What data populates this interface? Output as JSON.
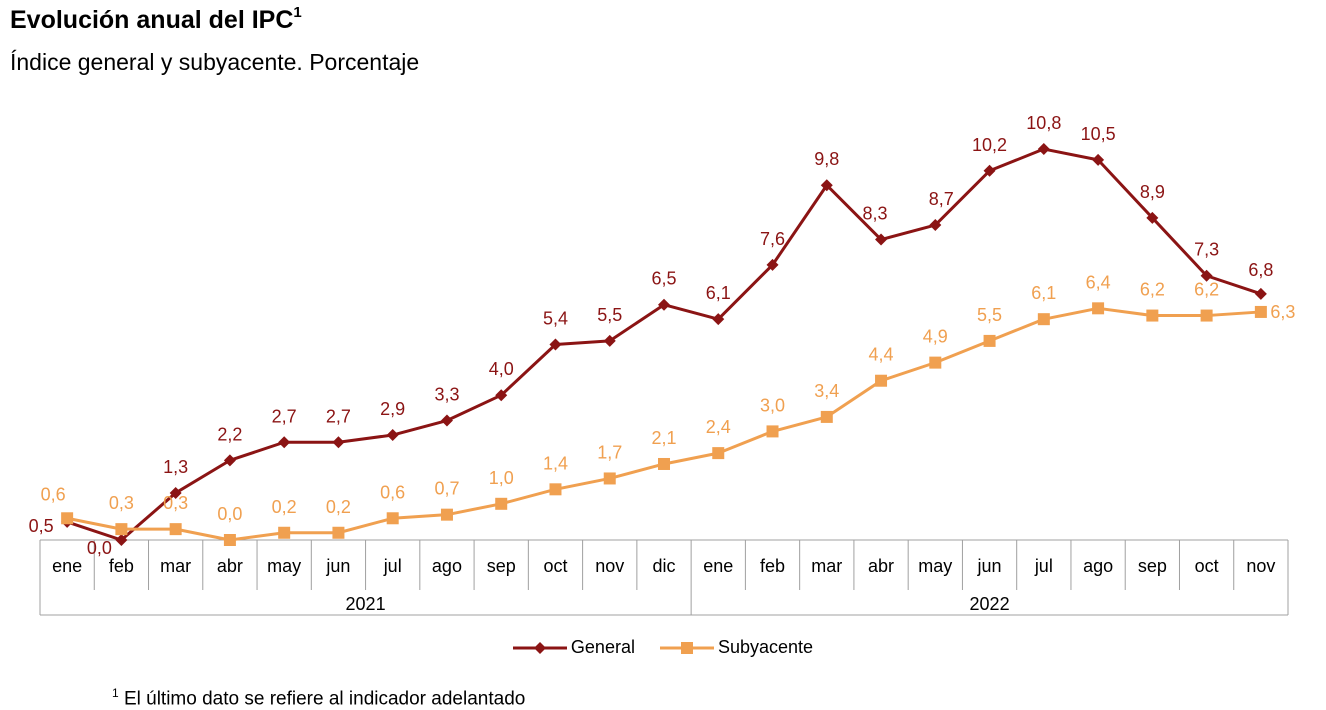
{
  "title": "Evolución anual del IPC",
  "title_superscript": "1",
  "subtitle": "Índice general y subyacente. Porcentaje",
  "footnote": {
    "marker": "1",
    "text": "El último dato se refiere al indicador adelantado"
  },
  "colors": {
    "general": "#8b1414",
    "subyacente": "#f0a050",
    "axis": "#a0a0a0"
  },
  "chart_data": {
    "type": "line",
    "categories": [
      "ene",
      "feb",
      "mar",
      "abr",
      "may",
      "jun",
      "jul",
      "ago",
      "sep",
      "oct",
      "nov",
      "dic",
      "ene",
      "feb",
      "mar",
      "abr",
      "may",
      "jun",
      "jul",
      "ago",
      "sep",
      "oct",
      "nov"
    ],
    "groups": [
      {
        "label": "2021",
        "start": 0,
        "end": 11
      },
      {
        "label": "2022",
        "start": 12,
        "end": 22
      }
    ],
    "series": [
      {
        "name": "General",
        "marker": "diamond",
        "values": [
          0.5,
          0.0,
          1.3,
          2.2,
          2.7,
          2.7,
          2.9,
          3.3,
          4.0,
          5.4,
          5.5,
          6.5,
          6.1,
          7.6,
          9.8,
          8.3,
          8.7,
          10.2,
          10.8,
          10.5,
          8.9,
          7.3,
          6.8
        ],
        "labels": [
          "0,5",
          "0,0",
          "1,3",
          "2,2",
          "2,7",
          "2,7",
          "2,9",
          "3,3",
          "4,0",
          "5,4",
          "5,5",
          "6,5",
          "6,1",
          "7,6",
          "9,8",
          "8,3",
          "8,7",
          "10,2",
          "10,8",
          "10,5",
          "8,9",
          "7,3",
          "6,8"
        ]
      },
      {
        "name": "Subyacente",
        "marker": "square",
        "values": [
          0.6,
          0.3,
          0.3,
          0.0,
          0.2,
          0.2,
          0.6,
          0.7,
          1.0,
          1.4,
          1.7,
          2.1,
          2.4,
          3.0,
          3.4,
          4.4,
          4.9,
          5.5,
          6.1,
          6.4,
          6.2,
          6.2,
          6.3
        ],
        "labels": [
          "0,6",
          "0,3",
          "0,3",
          "0,0",
          "0,2",
          "0,2",
          "0,6",
          "0,7",
          "1,0",
          "1,4",
          "1,7",
          "2,1",
          "2,4",
          "3,0",
          "3,4",
          "4,4",
          "4,9",
          "5,5",
          "6,1",
          "6,4",
          "6,2",
          "6,2",
          "6,3"
        ]
      }
    ],
    "ylim": [
      0,
      10.8
    ],
    "grid": false,
    "legend_position": "bottom"
  }
}
